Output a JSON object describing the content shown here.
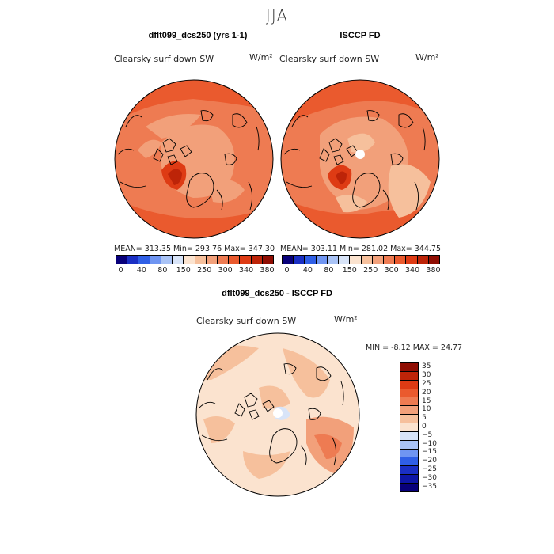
{
  "season": "JJA",
  "panels": [
    {
      "title": "dflt099_dcs250 (yrs 1-1)",
      "variable": "Clearsky surf down SW",
      "units": "W/m²",
      "stats": "MEAN= 313.35   Min= 293.76   Max= 347.30"
    },
    {
      "title": "ISCCP FD",
      "variable": "Clearsky surf down SW",
      "units": "W/m²",
      "stats": "MEAN= 303.11   Min= 281.02   Max= 344.75"
    }
  ],
  "colorbar_top": {
    "tick_labels": [
      "0",
      "40",
      "80",
      "150",
      "250",
      "300",
      "340",
      "380"
    ],
    "colors": [
      "#08007a",
      "#1a2fc4",
      "#2f5fe6",
      "#6f95f2",
      "#a9c3f6",
      "#d8e4f8",
      "#fbe3cf",
      "#f6c09c",
      "#f2a07a",
      "#ee7b52",
      "#ea5a2e",
      "#de3b14",
      "#bd2408",
      "#8f0d02"
    ]
  },
  "diff_panel": {
    "title": "dflt099_dcs250 - ISCCP FD",
    "variable": "Clearsky surf down SW",
    "units": "W/m²",
    "stats": "MIN =   -8.12  MAX =   24.77"
  },
  "colorbar_diff": {
    "tick_labels": [
      "35",
      "30",
      "25",
      "20",
      "15",
      "10",
      "5",
      "0",
      "−5",
      "−10",
      "−15",
      "−20",
      "−25",
      "−30",
      "−35"
    ],
    "colors": [
      "#8f0d02",
      "#bd2408",
      "#de3b14",
      "#ea5a2e",
      "#ee7b52",
      "#f2a07a",
      "#f6c09c",
      "#fbe3cf",
      "#d8e4f8",
      "#a9c3f6",
      "#6f95f2",
      "#2f5fe6",
      "#1a2fc4",
      "#0e16a6",
      "#08007a"
    ]
  }
}
